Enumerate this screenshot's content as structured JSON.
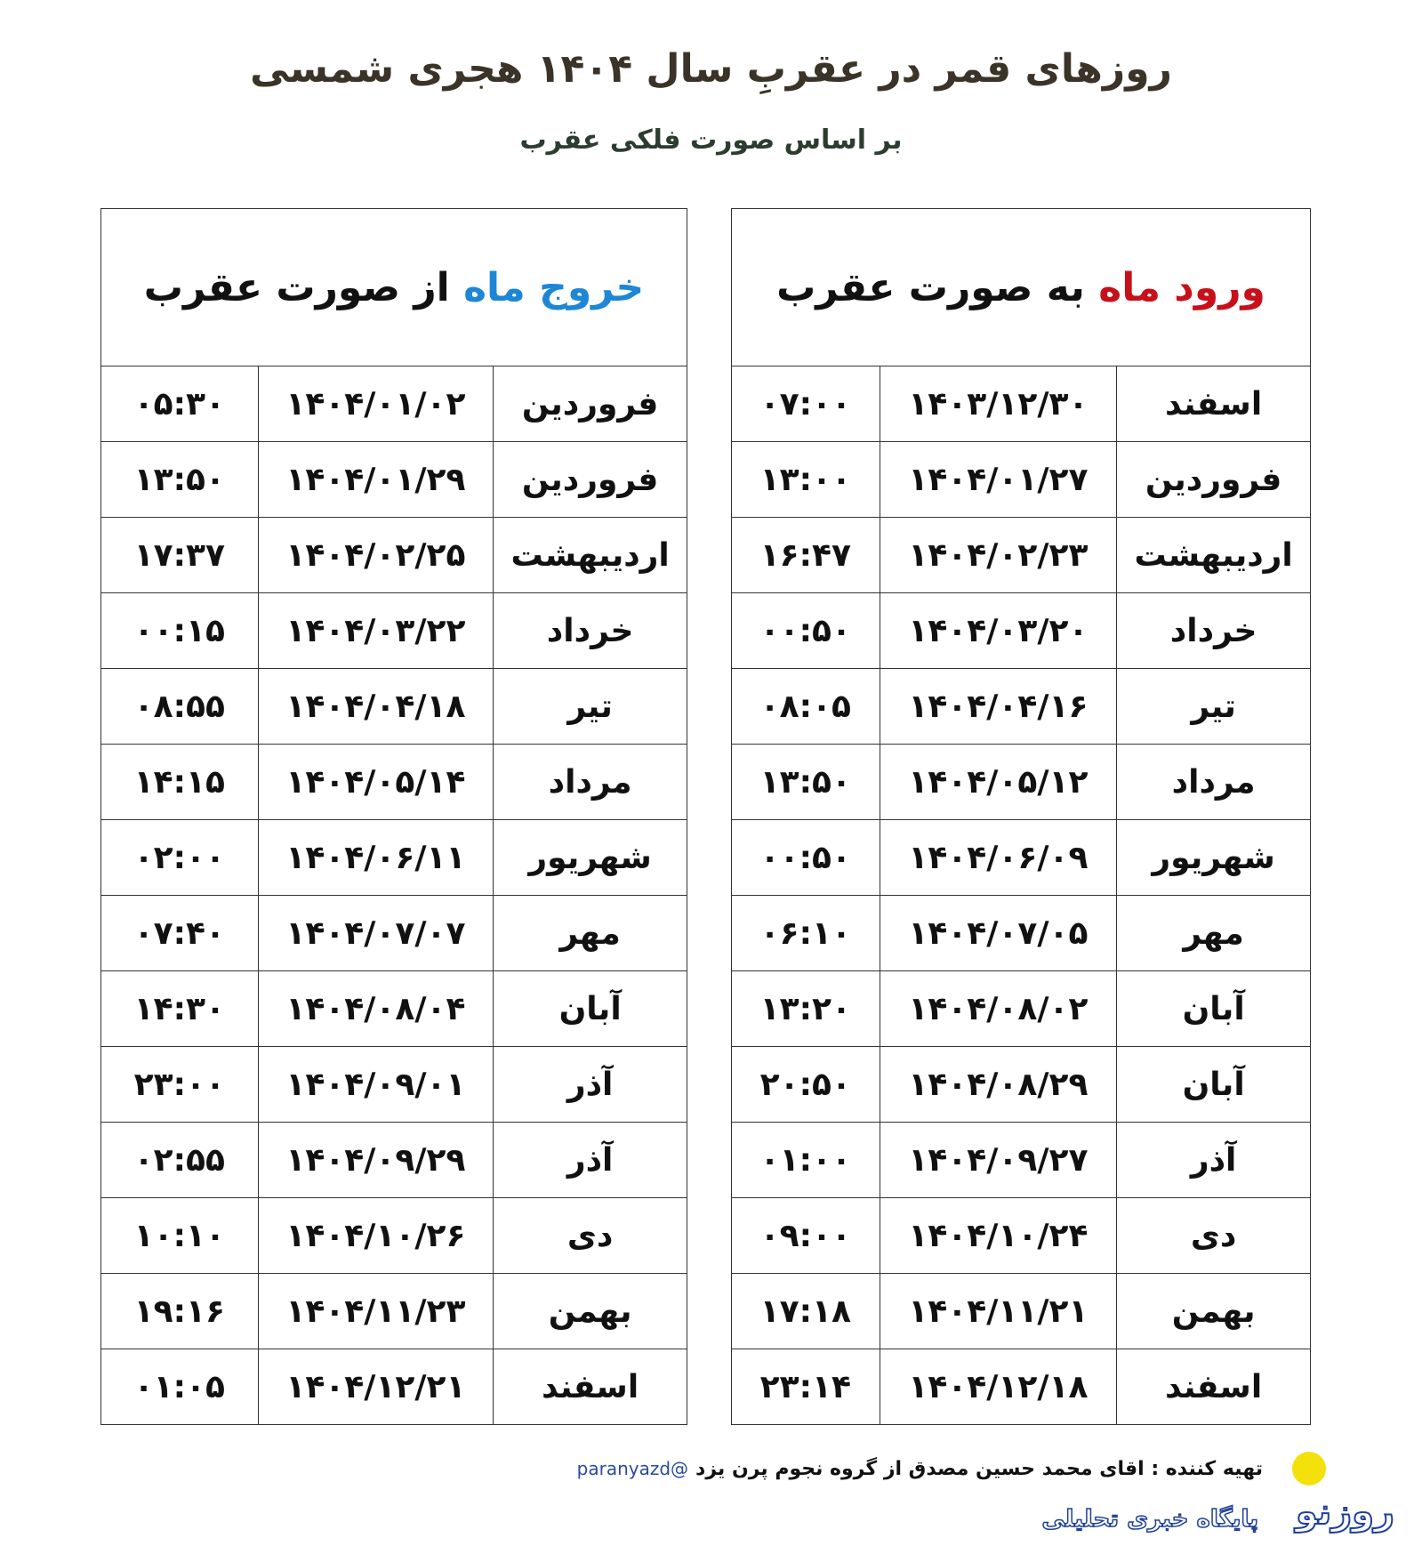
{
  "title": "روزهای قمر در عقربِ سال ۱۴۰۴ هجری شمسی",
  "subtitle": "بر اساس صورت فلکی عقرب",
  "entry": {
    "heading_colored": "ورود ماه",
    "heading_rest": " به صورت عقرب",
    "rows": [
      [
        "اسفند",
        "۱۴۰۳/۱۲/۳۰",
        "۰۷:۰۰"
      ],
      [
        "فروردین",
        "۱۴۰۴/۰۱/۲۷",
        "۱۳:۰۰"
      ],
      [
        "اردیبهشت",
        "۱۴۰۴/۰۲/۲۳",
        "۱۶:۴۷"
      ],
      [
        "خرداد",
        "۱۴۰۴/۰۳/۲۰",
        "۰۰:۵۰"
      ],
      [
        "تیر",
        "۱۴۰۴/۰۴/۱۶",
        "۰۸:۰۵"
      ],
      [
        "مرداد",
        "۱۴۰۴/۰۵/۱۲",
        "۱۳:۵۰"
      ],
      [
        "شهریور",
        "۱۴۰۴/۰۶/۰۹",
        "۰۰:۵۰"
      ],
      [
        "مهر",
        "۱۴۰۴/۰۷/۰۵",
        "۰۶:۱۰"
      ],
      [
        "آبان",
        "۱۴۰۴/۰۸/۰۲",
        "۱۳:۲۰"
      ],
      [
        "آبان",
        "۱۴۰۴/۰۸/۲۹",
        "۲۰:۵۰"
      ],
      [
        "آذر",
        "۱۴۰۴/۰۹/۲۷",
        "۰۱:۰۰"
      ],
      [
        "دی",
        "۱۴۰۴/۱۰/۲۴",
        "۰۹:۰۰"
      ],
      [
        "بهمن",
        "۱۴۰۴/۱۱/۲۱",
        "۱۷:۱۸"
      ],
      [
        "اسفند",
        "۱۴۰۴/۱۲/۱۸",
        "۲۳:۱۴"
      ]
    ]
  },
  "exit": {
    "heading_colored": "خروج ماه",
    "heading_rest": " از صورت عقرب",
    "rows": [
      [
        "فروردین",
        "۱۴۰۴/۰۱/۰۲",
        "۰۵:۳۰"
      ],
      [
        "فروردین",
        "۱۴۰۴/۰۱/۲۹",
        "۱۳:۵۰"
      ],
      [
        "اردیبهشت",
        "۱۴۰۴/۰۲/۲۵",
        "۱۷:۳۷"
      ],
      [
        "خرداد",
        "۱۴۰۴/۰۳/۲۲",
        "۰۰:۱۵"
      ],
      [
        "تیر",
        "۱۴۰۴/۰۴/۱۸",
        "۰۸:۵۵"
      ],
      [
        "مرداد",
        "۱۴۰۴/۰۵/۱۴",
        "۱۴:۱۵"
      ],
      [
        "شهریور",
        "۱۴۰۴/۰۶/۱۱",
        "۰۲:۰۰"
      ],
      [
        "مهر",
        "۱۴۰۴/۰۷/۰۷",
        "۰۷:۴۰"
      ],
      [
        "آبان",
        "۱۴۰۴/۰۸/۰۴",
        "۱۴:۳۰"
      ],
      [
        "آذر",
        "۱۴۰۴/۰۹/۰۱",
        "۲۳:۰۰"
      ],
      [
        "آذر",
        "۱۴۰۴/۰۹/۲۹",
        "۰۲:۵۵"
      ],
      [
        "دی",
        "۱۴۰۴/۱۰/۲۶",
        "۱۰:۱۰"
      ],
      [
        "بهمن",
        "۱۴۰۴/۱۱/۲۳",
        "۱۹:۱۶"
      ],
      [
        "اسفند",
        "۱۴۰۴/۱۲/۲۱",
        "۰۱:۰۵"
      ]
    ]
  },
  "credit": {
    "text": "تهیه کننده : اقای محمد حسین مصدق از گروه نجوم پرن یزد",
    "handle": "@paranyazd"
  },
  "logo": {
    "mark": "روزنو",
    "tagline": "پایگاه خبری تحلیلی",
    "sun_color": "#f4e10c",
    "color": "#1d3f9a"
  },
  "colors": {
    "entry_accent": "#c8101a",
    "exit_accent": "#1d86d6",
    "title": "#3b3328",
    "subtitle": "#2b3d2e"
  }
}
